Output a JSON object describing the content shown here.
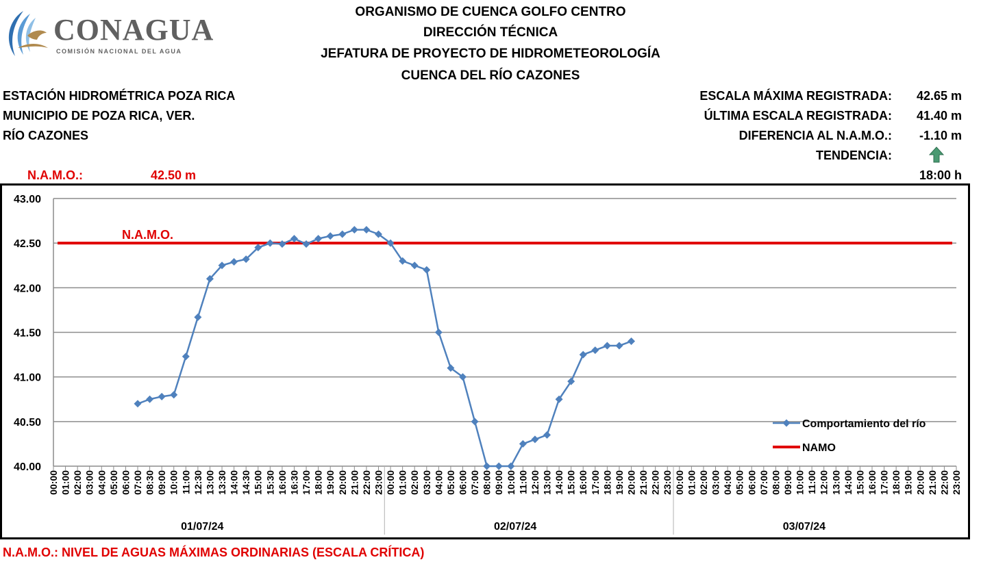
{
  "logo": {
    "name": "CONAGUA",
    "subtitle": "COMISIÓN NACIONAL DEL AGUA"
  },
  "header": {
    "line1": "ORGANISMO DE CUENCA GOLFO CENTRO",
    "line2": "DIRECCIÓN TÉCNICA",
    "line3": "JEFATURA DE PROYECTO DE HIDROMETEOROLOGÍA",
    "line4": "CUENCA DEL RÍO CAZONES"
  },
  "station": {
    "name": "ESTACIÓN HIDROMÉTRICA POZA RICA",
    "municipality": "MUNICIPIO DE POZA RICA, VER.",
    "river": "RÍO CAZONES"
  },
  "stats": {
    "max_label": "ESCALA MÁXIMA REGISTRADA:",
    "max_value": "42.65 m",
    "last_label": "ÚLTIMA ESCALA REGISTRADA:",
    "last_value": "41.40 m",
    "diff_label": "DIFERENCIA AL N.A.M.O.:",
    "diff_value": "-1.10 m",
    "trend_label": "TENDENCIA:",
    "trend_icon": "arrow-up-icon",
    "time": "18:00 h"
  },
  "namo": {
    "label": "N.A.M.O.:",
    "value": "42.50 m"
  },
  "footer": "N.A.M.O.: NIVEL DE AGUAS MÁXIMAS ORDINARIAS (ESCALA CRÍTICA)",
  "colors": {
    "series": "#4f81bd",
    "namo": "#e00000",
    "grid": "#8c8c8c",
    "trend_arrow": "#3f8f66"
  },
  "chart_data": {
    "type": "line",
    "title": "",
    "xlabel": "",
    "ylabel": "",
    "ylim": [
      40.0,
      43.0
    ],
    "yticks": [
      "40.00",
      "40.50",
      "41.00",
      "41.50",
      "42.00",
      "42.50",
      "43.00"
    ],
    "x": [
      "00:00",
      "01:00",
      "02:00",
      "03:00",
      "04:00",
      "05:00",
      "06:00",
      "07:00",
      "08:30",
      "09:00",
      "10:00",
      "11:00",
      "12:30",
      "13:00",
      "13:30",
      "14:00",
      "14:30",
      "15:00",
      "15:30",
      "16:00",
      "16:30",
      "17:00",
      "18:00",
      "19:00",
      "20:00",
      "21:00",
      "22:00",
      "23:00",
      "00:00",
      "01:00",
      "02:00",
      "03:00",
      "04:00",
      "05:00",
      "06:00",
      "07:00",
      "08:00",
      "09:00",
      "10:00",
      "11:00",
      "12:00",
      "13:00",
      "14:00",
      "15:00",
      "16:00",
      "17:00",
      "18:00",
      "19:00",
      "20:00",
      "21:00",
      "22:00",
      "23:00",
      "00:00",
      "01:00",
      "02:00",
      "03:00",
      "04:00",
      "05:00",
      "06:00",
      "07:00",
      "08:00",
      "09:00",
      "10:00",
      "11:00",
      "12:00",
      "13:00",
      "14:00",
      "15:00",
      "16:00",
      "17:00",
      "18:00",
      "19:00",
      "20:00",
      "21:00",
      "22:00",
      "23:00"
    ],
    "groups": [
      {
        "label": "01/07/24",
        "count": 28
      },
      {
        "label": "02/07/24",
        "count": 24
      },
      {
        "label": "03/07/24",
        "count": 24
      }
    ],
    "series": [
      {
        "name": "Comportamiento del río",
        "values": [
          null,
          null,
          null,
          null,
          null,
          null,
          null,
          40.7,
          40.75,
          40.78,
          40.8,
          41.23,
          41.67,
          42.1,
          42.25,
          42.29,
          42.32,
          42.45,
          42.5,
          42.49,
          42.55,
          42.49,
          42.55,
          42.58,
          42.6,
          42.65,
          42.65,
          42.6,
          42.5,
          42.3,
          42.25,
          42.2,
          41.5,
          41.1,
          41.0,
          40.5,
          40.0,
          40.0,
          40.0,
          40.25,
          40.3,
          40.35,
          40.75,
          40.95,
          41.25,
          41.3,
          41.35,
          41.35,
          41.4,
          null,
          null,
          null,
          null,
          null,
          null,
          null,
          null,
          null,
          null,
          null,
          null,
          null,
          null,
          null,
          null,
          null,
          null,
          null,
          null,
          null,
          null,
          null,
          null,
          null,
          null,
          null
        ]
      },
      {
        "name": "NAMO",
        "value": 42.5,
        "label": "N.A.M.O."
      }
    ],
    "legend_position": "bottom-right",
    "grid": true
  }
}
